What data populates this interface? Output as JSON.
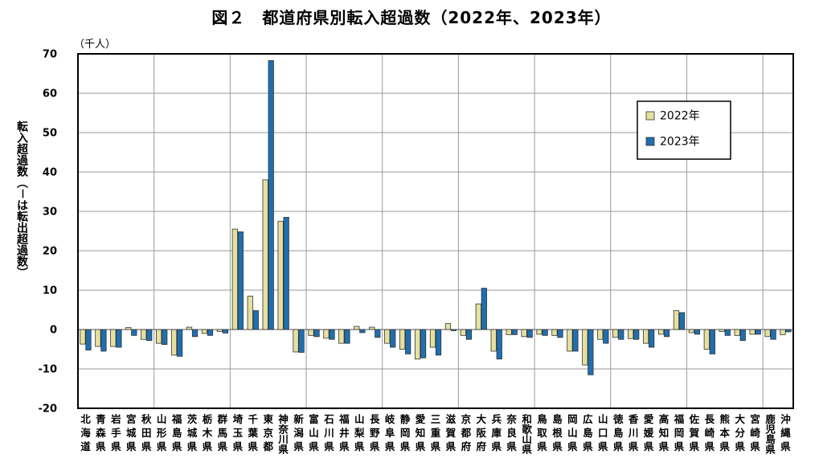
{
  "chart_data": {
    "type": "bar",
    "title": "図２　都道府県別転入超過数（2022年、2023年）",
    "unit_label": "（千人）",
    "ylabel": "転入超過数（－は転出超過数）",
    "ylim": [
      -20,
      70
    ],
    "yticks": [
      70,
      60,
      50,
      40,
      30,
      20,
      10,
      0,
      -10,
      -20
    ],
    "grid": true,
    "legend_position": "top-right",
    "colors": {
      "2022年": "#e6e0a0",
      "2023年": "#1f6fb0"
    },
    "categories": [
      "北海道",
      "青森県",
      "岩手県",
      "宮城県",
      "秋田県",
      "山形県",
      "福島県",
      "茨城県",
      "栃木県",
      "群馬県",
      "埼玉県",
      "千葉県",
      "東京都",
      "神奈川県",
      "新潟県",
      "富山県",
      "石川県",
      "福井県",
      "山梨県",
      "長野県",
      "岐阜県",
      "静岡県",
      "愛知県",
      "三重県",
      "滋賀県",
      "京都府",
      "大阪府",
      "兵庫県",
      "奈良県",
      "和歌山県",
      "鳥取県",
      "島根県",
      "岡山県",
      "広島県",
      "山口県",
      "徳島県",
      "香川県",
      "愛媛県",
      "高知県",
      "福岡県",
      "佐賀県",
      "長崎県",
      "熊本県",
      "大分県",
      "宮崎県",
      "鹿児島県",
      "沖縄県"
    ],
    "series": [
      {
        "name": "2022年",
        "values": [
          -3.7,
          -4.3,
          -4.3,
          0.5,
          -2.5,
          -3.5,
          -6.5,
          0.6,
          -1.0,
          -0.5,
          25.5,
          8.5,
          38.0,
          27.5,
          -5.7,
          -1.5,
          -2.2,
          -3.5,
          0.8,
          0.6,
          -3.5,
          -5.0,
          -7.5,
          -4.5,
          1.5,
          -1.5,
          6.5,
          -5.5,
          -1.3,
          -1.8,
          -1.2,
          -1.5,
          -5.5,
          -9.0,
          -2.5,
          -2.0,
          -2.3,
          -3.5,
          -1.2,
          4.8,
          -0.8,
          -5.0,
          -0.5,
          -1.5,
          -1.2,
          -1.8,
          -1.3
        ]
      },
      {
        "name": "2023年",
        "values": [
          -5.2,
          -5.5,
          -4.5,
          -1.5,
          -2.8,
          -3.8,
          -6.8,
          -1.8,
          -1.5,
          -0.9,
          24.8,
          4.8,
          68.3,
          28.5,
          -5.8,
          -1.8,
          -2.5,
          -3.5,
          -0.8,
          -2.0,
          -4.5,
          -6.2,
          -7.2,
          -6.5,
          -0.3,
          -2.5,
          10.5,
          -7.5,
          -1.3,
          -2.0,
          -1.5,
          -2.0,
          -5.5,
          -11.5,
          -3.5,
          -2.5,
          -2.5,
          -4.5,
          -1.8,
          4.3,
          -1.2,
          -6.2,
          -1.5,
          -2.8,
          -1.2,
          -2.5,
          -0.6
        ]
      }
    ]
  }
}
